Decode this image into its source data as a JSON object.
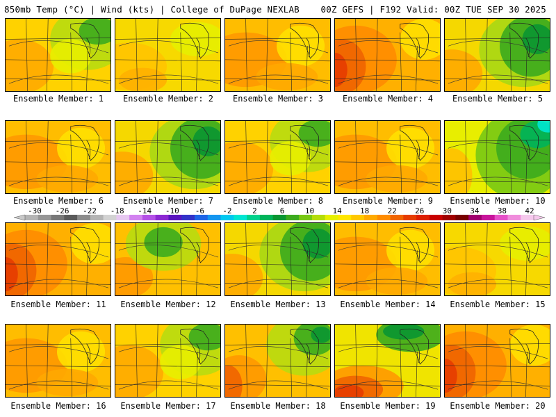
{
  "header": {
    "left": "850mb Temp (°C) | Wind (kts) | College of DuPage NEXLAB",
    "right": "00Z GEFS | F192 Valid: 00Z TUE SEP 30 2025"
  },
  "colorbar": {
    "labels": [
      "-30",
      "-26",
      "-22",
      "-18",
      "-14",
      "-10",
      "-6",
      "-2",
      "2",
      "6",
      "10",
      "14",
      "18",
      "22",
      "26",
      "30",
      "34",
      "38",
      "42"
    ],
    "colors": [
      "#b4b4b4",
      "#969696",
      "#787878",
      "#5a5a5a",
      "#8c8c8c",
      "#b4b4b4",
      "#d2d2d2",
      "#e6c8f0",
      "#d282f0",
      "#b450e6",
      "#8c28d2",
      "#5a14be",
      "#3232c8",
      "#1e64e6",
      "#1496f0",
      "#00c8f0",
      "#00e6d2",
      "#00d28c",
      "#00b45a",
      "#0a9632",
      "#3caa1e",
      "#78c814",
      "#b4dc0a",
      "#e6f000",
      "#ffe600",
      "#ffc800",
      "#ffaa00",
      "#ff8c00",
      "#f06400",
      "#e63c00",
      "#dc1e00",
      "#c80000",
      "#a00000",
      "#780000",
      "#a0006e",
      "#c8149b",
      "#e650c8",
      "#f08cdc",
      "#f5c8ec"
    ]
  },
  "members": [
    {
      "label": "Ensemble Member: 1",
      "theme": "green-ne"
    },
    {
      "label": "Ensemble Member: 2",
      "theme": "yellow"
    },
    {
      "label": "Ensemble Member: 3",
      "theme": "orange"
    },
    {
      "label": "Ensemble Member: 4",
      "theme": "red-west"
    },
    {
      "label": "Ensemble Member: 5",
      "theme": "green-big"
    },
    {
      "label": "Ensemble Member: 6",
      "theme": "orange"
    },
    {
      "label": "Ensemble Member: 7",
      "theme": "green-big"
    },
    {
      "label": "Ensemble Member: 8",
      "theme": "green-ne"
    },
    {
      "label": "Ensemble Member: 9",
      "theme": "orange"
    },
    {
      "label": "Ensemble Member: 10",
      "theme": "cyan-ne"
    },
    {
      "label": "Ensemble Member: 11",
      "theme": "red-west"
    },
    {
      "label": "Ensemble Member: 12",
      "theme": "green-mid"
    },
    {
      "label": "Ensemble Member: 13",
      "theme": "green-big"
    },
    {
      "label": "Ensemble Member: 14",
      "theme": "orange"
    },
    {
      "label": "Ensemble Member: 15",
      "theme": "yellow"
    },
    {
      "label": "Ensemble Member: 16",
      "theme": "orange"
    },
    {
      "label": "Ensemble Member: 17",
      "theme": "green-ne"
    },
    {
      "label": "Ensemble Member: 18",
      "theme": "green-ne-red"
    },
    {
      "label": "Ensemble Member: 19",
      "theme": "red-sw"
    },
    {
      "label": "Ensemble Member: 20",
      "theme": "red-west"
    }
  ]
}
